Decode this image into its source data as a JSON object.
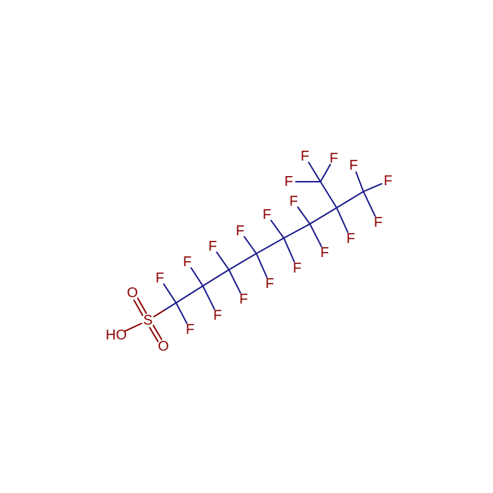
{
  "molecule": {
    "atoms": [
      "HO",
      "S",
      "O",
      "O",
      "F",
      "F",
      "F",
      "F",
      "F",
      "F",
      "F",
      "F",
      "F",
      "F",
      "F",
      "F",
      "F",
      "F",
      "F",
      "F",
      "F",
      "F",
      "F"
    ]
  }
}
